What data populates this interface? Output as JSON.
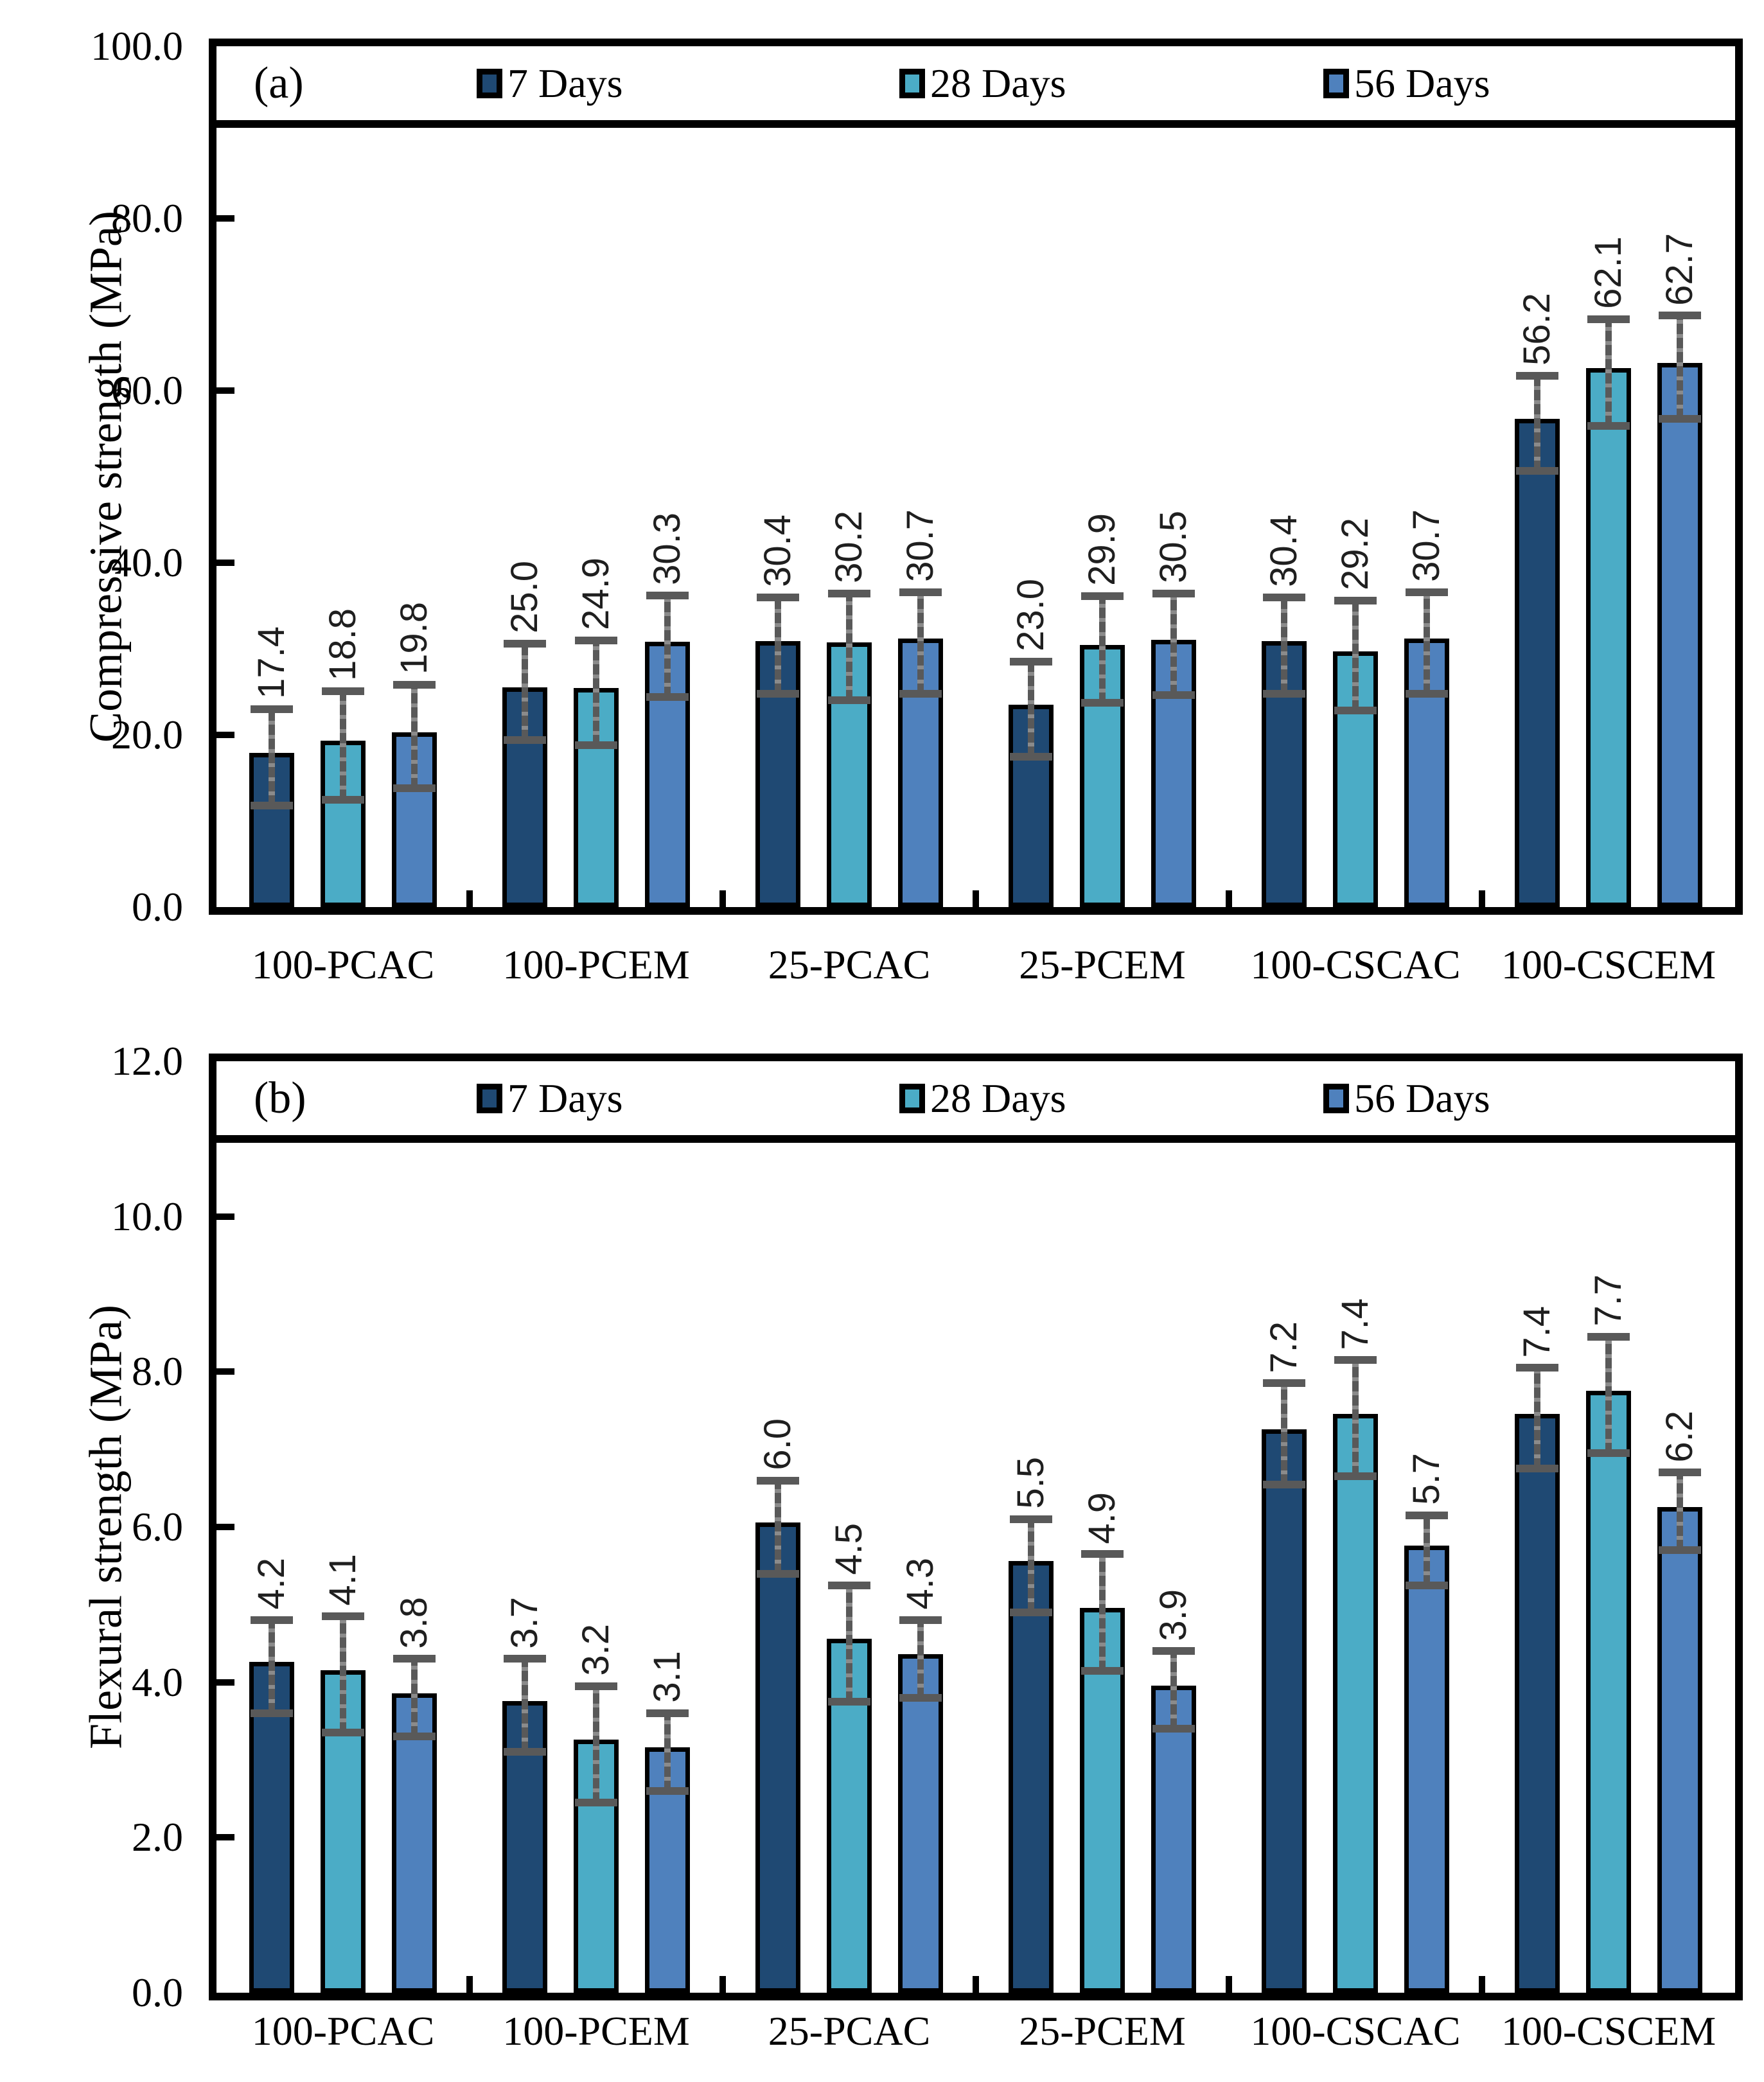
{
  "chart_data": [
    {
      "type": "bar",
      "panel": "(a)",
      "title": "",
      "xlabel": "",
      "ylabel": "Compressive strength (MPa)",
      "ylim": [
        0,
        100
      ],
      "ytick_step": 20,
      "ytick_labels": [
        "0.0",
        "20.0",
        "40.0",
        "60.0",
        "80.0",
        "100.0"
      ],
      "grid": false,
      "legend_position": "top-inside",
      "error_bar_color": "#595959",
      "categories": [
        "100-PCAC",
        "100-PCEM",
        "25-PCAC",
        "25-PCEM",
        "100-CSCAC",
        "100-CSCEM"
      ],
      "series": [
        {
          "name": "7 Days",
          "color": "#1F4973",
          "values": [
            17.4,
            25.0,
            30.4,
            23.0,
            30.4,
            56.2
          ],
          "value_labels": [
            "17.4",
            "25.0",
            "30.4",
            "23.0",
            "30.4",
            "56.2"
          ],
          "errors": [
            5.6,
            5.6,
            5.6,
            5.5,
            5.6,
            5.5
          ]
        },
        {
          "name": "28 Days",
          "color": "#4BACC6",
          "values": [
            18.8,
            24.9,
            30.2,
            29.9,
            29.2,
            62.1
          ],
          "value_labels": [
            "18.8",
            "24.9",
            "30.2",
            "29.9",
            "29.2",
            "62.1"
          ],
          "errors": [
            6.3,
            6.1,
            6.2,
            6.2,
            6.4,
            6.2
          ]
        },
        {
          "name": "56 Days",
          "color": "#4F81BD",
          "values": [
            19.8,
            30.3,
            30.7,
            30.5,
            30.7,
            62.7
          ],
          "value_labels": [
            "19.8",
            "30.3",
            "30.7",
            "30.5",
            "30.7",
            "62.7"
          ],
          "errors": [
            6.0,
            5.9,
            5.9,
            5.9,
            5.9,
            6.0
          ]
        }
      ]
    },
    {
      "type": "bar",
      "panel": "(b)",
      "title": "",
      "xlabel": "",
      "ylabel": "Flexural strength (MPa)",
      "ylim": [
        0,
        12
      ],
      "ytick_step": 2,
      "ytick_labels": [
        "0.0",
        "2.0",
        "4.0",
        "6.0",
        "8.0",
        "10.0",
        "12.0"
      ],
      "grid": false,
      "legend_position": "top-inside",
      "error_bar_color": "#595959",
      "categories": [
        "100-PCAC",
        "100-PCEM",
        "25-PCAC",
        "25-PCEM",
        "100-CSCAC",
        "100-CSCEM"
      ],
      "series": [
        {
          "name": "7 Days",
          "color": "#1F4973",
          "values": [
            4.2,
            3.7,
            6.0,
            5.5,
            7.2,
            7.4
          ],
          "value_labels": [
            "4.2",
            "3.7",
            "6.0",
            "5.5",
            "7.2",
            "7.4"
          ],
          "errors": [
            0.6,
            0.6,
            0.6,
            0.6,
            0.65,
            0.65
          ]
        },
        {
          "name": "28 Days",
          "color": "#4BACC6",
          "values": [
            4.1,
            3.2,
            4.5,
            4.9,
            7.4,
            7.7
          ],
          "value_labels": [
            "4.1",
            "3.2",
            "4.5",
            "4.9",
            "7.4",
            "7.7"
          ],
          "errors": [
            0.75,
            0.75,
            0.75,
            0.75,
            0.75,
            0.75
          ]
        },
        {
          "name": "56 Days",
          "color": "#4F81BD",
          "values": [
            3.8,
            3.1,
            4.3,
            3.9,
            5.7,
            6.2
          ],
          "value_labels": [
            "3.8",
            "3.1",
            "4.3",
            "3.9",
            "5.7",
            "6.2"
          ],
          "errors": [
            0.5,
            0.5,
            0.5,
            0.5,
            0.45,
            0.5
          ]
        }
      ]
    }
  ]
}
